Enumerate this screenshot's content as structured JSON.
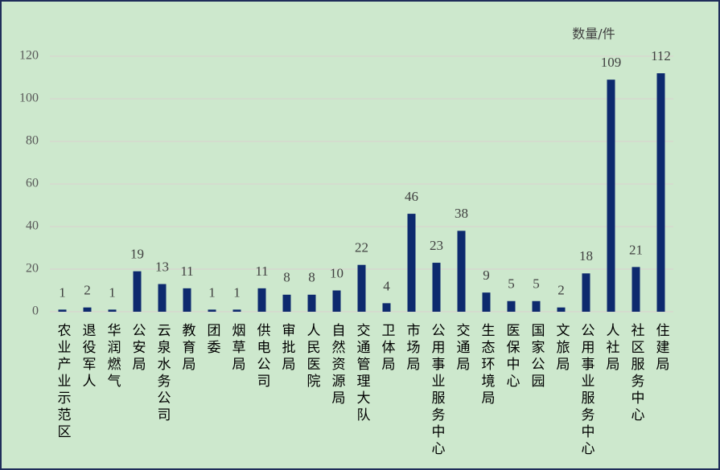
{
  "chart_data": {
    "type": "bar",
    "unit_label": "数量/件",
    "categories": [
      "农业产业示范区",
      "退役军人",
      "华润燃气",
      "公安局",
      "云泉水务公司",
      "教育局",
      "团委",
      "烟草局",
      "供电公司",
      "审批局",
      "人民医院",
      "自然资源局",
      "交通管理大队",
      "卫体局",
      "市场局",
      "公用事业服务中心",
      "交通局",
      "生态环境局",
      "医保中心",
      "国家公园",
      "文旅局",
      "公用事业服务中心",
      "人社局",
      "社区服务中心",
      "住建局"
    ],
    "values": [
      1,
      2,
      1,
      19,
      13,
      11,
      1,
      1,
      11,
      8,
      8,
      10,
      22,
      4,
      46,
      23,
      38,
      9,
      5,
      5,
      2,
      18,
      109,
      21,
      112
    ],
    "color": "#0d2a6e",
    "ylim": [
      0,
      120
    ],
    "yticks": [
      0,
      20,
      40,
      60,
      80,
      100,
      120
    ],
    "grid": true
  }
}
